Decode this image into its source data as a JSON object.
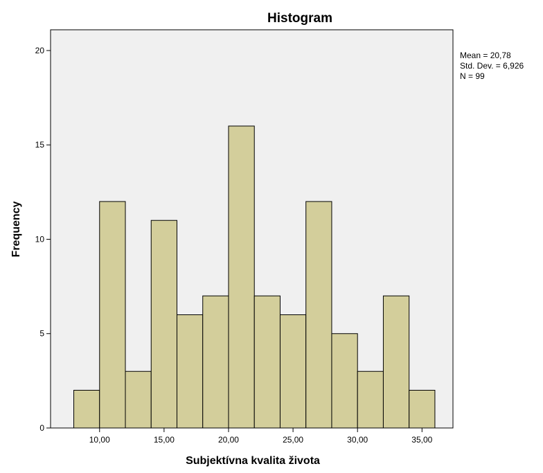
{
  "chart_data": {
    "type": "bar",
    "title": "Histogram",
    "xlabel": "Subjektívna kvalita života",
    "ylabel": "Frequency",
    "bin_width": 2,
    "bins": [
      {
        "start": 8,
        "end": 10,
        "count": 2
      },
      {
        "start": 10,
        "end": 12,
        "count": 12
      },
      {
        "start": 12,
        "end": 14,
        "count": 3
      },
      {
        "start": 14,
        "end": 16,
        "count": 11
      },
      {
        "start": 16,
        "end": 18,
        "count": 6
      },
      {
        "start": 18,
        "end": 20,
        "count": 7
      },
      {
        "start": 20,
        "end": 22,
        "count": 16
      },
      {
        "start": 22,
        "end": 24,
        "count": 7
      },
      {
        "start": 24,
        "end": 26,
        "count": 6
      },
      {
        "start": 26,
        "end": 28,
        "count": 12
      },
      {
        "start": 28,
        "end": 30,
        "count": 5
      },
      {
        "start": 30,
        "end": 32,
        "count": 3
      },
      {
        "start": 32,
        "end": 34,
        "count": 7
      },
      {
        "start": 34,
        "end": 36,
        "count": 2
      }
    ],
    "xlim": [
      6.2,
      37.4
    ],
    "ylim": [
      0,
      21.1
    ],
    "x_ticks": [
      10,
      15,
      20,
      25,
      30,
      35
    ],
    "x_tick_labels": [
      "10,00",
      "15,00",
      "20,00",
      "25,00",
      "30,00",
      "35,00"
    ],
    "y_ticks": [
      0,
      5,
      10,
      15,
      20
    ],
    "y_tick_labels": [
      "0",
      "5",
      "10",
      "15",
      "20"
    ],
    "stats": [
      "Mean = 20,78",
      "Std. Dev. = 6,926",
      "N = 99"
    ],
    "legend_position": "right",
    "grid": false,
    "colors": {
      "bar_fill": "#D3CE9B",
      "plot_background": "#F0F0F0",
      "stroke": "#000000"
    }
  }
}
